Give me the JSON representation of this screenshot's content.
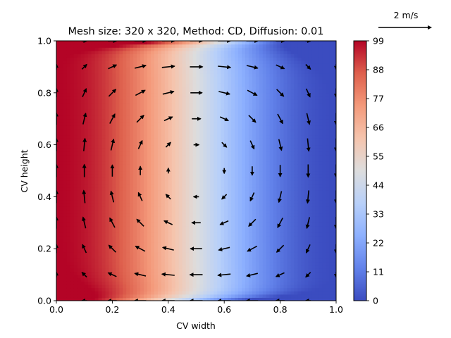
{
  "chart_data": {
    "type": "heatmap",
    "title": "Mesh size: 320 x 320, Method: CD, Diffusion: 0.01",
    "xlabel": "CV width",
    "ylabel": "CV height",
    "xlim": [
      0.0,
      1.0
    ],
    "ylim": [
      0.0,
      1.0
    ],
    "xticks": [
      "0.0",
      "0.2",
      "0.4",
      "0.6",
      "0.8",
      "1.0"
    ],
    "yticks": [
      "0.0",
      "0.2",
      "0.4",
      "0.6",
      "0.8",
      "1.0"
    ],
    "colorbar": {
      "colormap": "coolwarm",
      "range": [
        0,
        99
      ],
      "ticks": [
        "0",
        "11",
        "22",
        "33",
        "44",
        "55",
        "66",
        "77",
        "88",
        "99"
      ]
    },
    "field": {
      "description": "scalar field high (~99) along left wall, low (~0) along right wall, ~50 in center; thin cold layer at bottom boundary and warm layer along top boundary",
      "left_value": 99,
      "right_value": 0,
      "center_value": 50
    },
    "vector_field": {
      "kind": "clockwise vortex centered at (0.5, 0.5)",
      "grid": [
        11,
        11
      ],
      "max_speed_m_s": 2.0,
      "quiver_key": {
        "label": "2 m/s",
        "value": 2
      }
    },
    "grid": false
  }
}
